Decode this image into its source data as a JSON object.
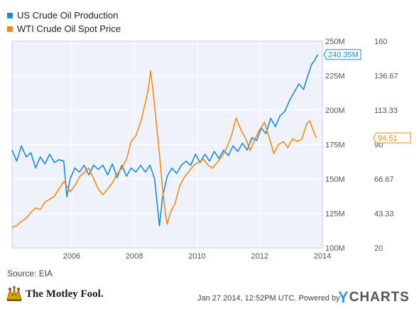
{
  "legend": {
    "series1": "US Crude Oil Production",
    "series2": "WTI Crude Oil Spot Price"
  },
  "footer": {
    "source": "Source: EIA",
    "logo_text": "The Motley Fool.",
    "credit": "Jan 27 2014, 12:52PM UTC.  Powered by",
    "ycharts_y": "Y",
    "ycharts_rest": "CHARTS"
  },
  "chart_data": {
    "type": "line",
    "title": "",
    "xlabel": "",
    "x_ticks": [
      "2006",
      "2008",
      "2010",
      "2012",
      "2014"
    ],
    "x_range": [
      2004.1,
      2014.0
    ],
    "y_left": {
      "unit": "M",
      "range": [
        100,
        250
      ],
      "ticks": [
        "100M",
        "125M",
        "150M",
        "175M",
        "200M",
        "225M",
        "250M"
      ]
    },
    "y_right": {
      "range": [
        20,
        160
      ],
      "ticks": [
        "20",
        "43.33",
        "66.67",
        "90",
        "113.33",
        "136.67",
        "160"
      ]
    },
    "grid": true,
    "legend_position": "top-left",
    "series": [
      {
        "name": "US Crude Oil Production",
        "axis": "left",
        "color": "#1f8ad6",
        "last_label": "240.35M",
        "points": [
          [
            2004.1,
            171
          ],
          [
            2004.25,
            163
          ],
          [
            2004.4,
            174
          ],
          [
            2004.55,
            166
          ],
          [
            2004.7,
            169
          ],
          [
            2004.85,
            158
          ],
          [
            2005.0,
            166
          ],
          [
            2005.15,
            161
          ],
          [
            2005.3,
            168
          ],
          [
            2005.45,
            162
          ],
          [
            2005.6,
            164
          ],
          [
            2005.75,
            163
          ],
          [
            2005.85,
            137
          ],
          [
            2005.95,
            150
          ],
          [
            2006.1,
            158
          ],
          [
            2006.25,
            155
          ],
          [
            2006.4,
            160
          ],
          [
            2006.55,
            153
          ],
          [
            2006.7,
            160
          ],
          [
            2006.85,
            157
          ],
          [
            2007.0,
            160
          ],
          [
            2007.15,
            153
          ],
          [
            2007.3,
            161
          ],
          [
            2007.45,
            151
          ],
          [
            2007.6,
            160
          ],
          [
            2007.75,
            152
          ],
          [
            2007.9,
            158
          ],
          [
            2008.05,
            155
          ],
          [
            2008.2,
            160
          ],
          [
            2008.35,
            155
          ],
          [
            2008.5,
            160
          ],
          [
            2008.65,
            150
          ],
          [
            2008.75,
            127
          ],
          [
            2008.8,
            116
          ],
          [
            2008.9,
            137
          ],
          [
            2009.05,
            152
          ],
          [
            2009.2,
            158
          ],
          [
            2009.35,
            154
          ],
          [
            2009.5,
            160
          ],
          [
            2009.65,
            163
          ],
          [
            2009.8,
            160
          ],
          [
            2009.95,
            168
          ],
          [
            2010.1,
            162
          ],
          [
            2010.25,
            168
          ],
          [
            2010.4,
            163
          ],
          [
            2010.55,
            170
          ],
          [
            2010.7,
            165
          ],
          [
            2010.85,
            171
          ],
          [
            2011.0,
            167
          ],
          [
            2011.15,
            174
          ],
          [
            2011.3,
            170
          ],
          [
            2011.45,
            176
          ],
          [
            2011.6,
            171
          ],
          [
            2011.75,
            180
          ],
          [
            2011.9,
            178
          ],
          [
            2012.05,
            187
          ],
          [
            2012.2,
            183
          ],
          [
            2012.35,
            194
          ],
          [
            2012.5,
            188
          ],
          [
            2012.65,
            196
          ],
          [
            2012.8,
            199
          ],
          [
            2012.95,
            207
          ],
          [
            2013.1,
            213
          ],
          [
            2013.25,
            219
          ],
          [
            2013.4,
            215
          ],
          [
            2013.55,
            226
          ],
          [
            2013.65,
            233
          ],
          [
            2013.75,
            236
          ],
          [
            2013.85,
            240.35
          ]
        ]
      },
      {
        "name": "WTI Crude Oil Spot Price",
        "axis": "right",
        "color": "#f08a1c",
        "last_label": "94.51",
        "points": [
          [
            2004.1,
            34
          ],
          [
            2004.25,
            35
          ],
          [
            2004.4,
            38
          ],
          [
            2004.55,
            40
          ],
          [
            2004.7,
            44
          ],
          [
            2004.85,
            47
          ],
          [
            2005.0,
            46
          ],
          [
            2005.15,
            51
          ],
          [
            2005.3,
            53
          ],
          [
            2005.45,
            55
          ],
          [
            2005.6,
            60
          ],
          [
            2005.75,
            65
          ],
          [
            2005.85,
            62
          ],
          [
            2005.95,
            58
          ],
          [
            2006.1,
            62
          ],
          [
            2006.25,
            68
          ],
          [
            2006.4,
            71
          ],
          [
            2006.55,
            74
          ],
          [
            2006.7,
            67
          ],
          [
            2006.85,
            60
          ],
          [
            2007.0,
            56
          ],
          [
            2007.15,
            60
          ],
          [
            2007.3,
            64
          ],
          [
            2007.45,
            70
          ],
          [
            2007.6,
            74
          ],
          [
            2007.75,
            80
          ],
          [
            2007.9,
            92
          ],
          [
            2008.05,
            96
          ],
          [
            2008.2,
            105
          ],
          [
            2008.35,
            118
          ],
          [
            2008.45,
            128
          ],
          [
            2008.52,
            140
          ],
          [
            2008.6,
            126
          ],
          [
            2008.7,
            105
          ],
          [
            2008.8,
            84
          ],
          [
            2008.9,
            60
          ],
          [
            2009.0,
            42
          ],
          [
            2009.05,
            36
          ],
          [
            2009.15,
            44
          ],
          [
            2009.3,
            50
          ],
          [
            2009.45,
            62
          ],
          [
            2009.6,
            68
          ],
          [
            2009.75,
            72
          ],
          [
            2009.9,
            76
          ],
          [
            2010.05,
            78
          ],
          [
            2010.2,
            80
          ],
          [
            2010.35,
            76
          ],
          [
            2010.5,
            74
          ],
          [
            2010.65,
            78
          ],
          [
            2010.8,
            82
          ],
          [
            2010.95,
            88
          ],
          [
            2011.1,
            96
          ],
          [
            2011.25,
            108
          ],
          [
            2011.4,
            100
          ],
          [
            2011.55,
            94
          ],
          [
            2011.7,
            86
          ],
          [
            2011.85,
            94
          ],
          [
            2012.0,
            100
          ],
          [
            2012.15,
            105
          ],
          [
            2012.3,
            95
          ],
          [
            2012.45,
            84
          ],
          [
            2012.6,
            90
          ],
          [
            2012.75,
            92
          ],
          [
            2012.9,
            88
          ],
          [
            2013.05,
            94
          ],
          [
            2013.2,
            92
          ],
          [
            2013.35,
            94
          ],
          [
            2013.5,
            104
          ],
          [
            2013.6,
            106
          ],
          [
            2013.7,
            100
          ],
          [
            2013.8,
            94.51
          ]
        ]
      }
    ]
  }
}
